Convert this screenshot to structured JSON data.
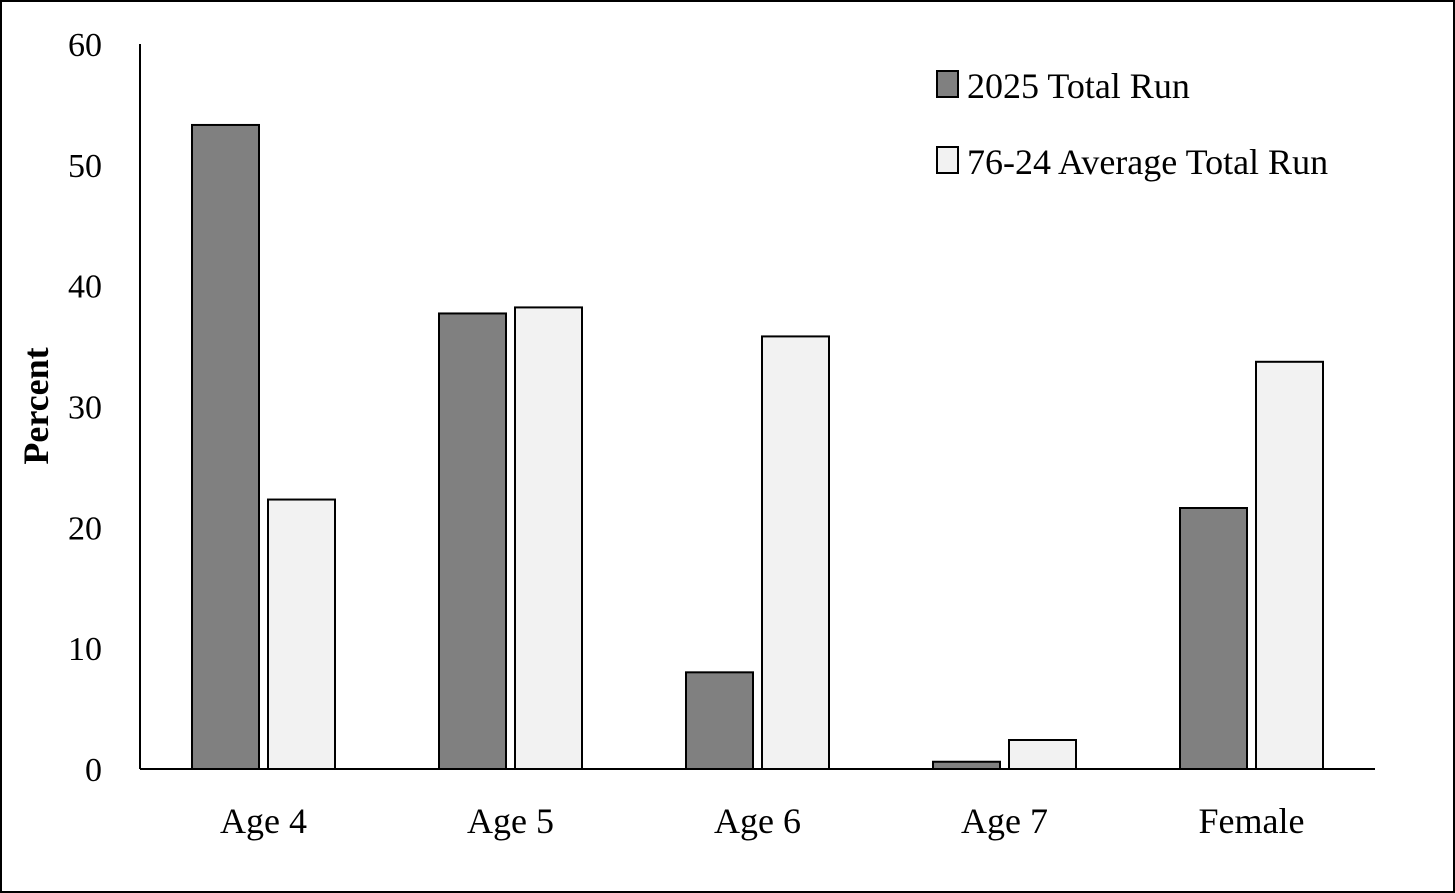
{
  "chart_data": {
    "type": "bar",
    "title": "",
    "xlabel": "",
    "ylabel": "Percent",
    "ylim": [
      0,
      60
    ],
    "yticks": [
      0,
      10,
      20,
      30,
      40,
      50,
      60
    ],
    "grid": false,
    "legend_position": "top-right",
    "categories": [
      "Age 4",
      "Age 5",
      "Age 6",
      "Age 7",
      "Female"
    ],
    "series": [
      {
        "name": "2025 Total Run",
        "color": "#808080",
        "values": [
          53.3,
          37.7,
          8.0,
          0.6,
          21.6
        ]
      },
      {
        "name": "76-24 Average Total Run",
        "color": "#f2f2f2",
        "values": [
          22.3,
          38.2,
          35.8,
          2.4,
          33.7
        ]
      }
    ]
  }
}
